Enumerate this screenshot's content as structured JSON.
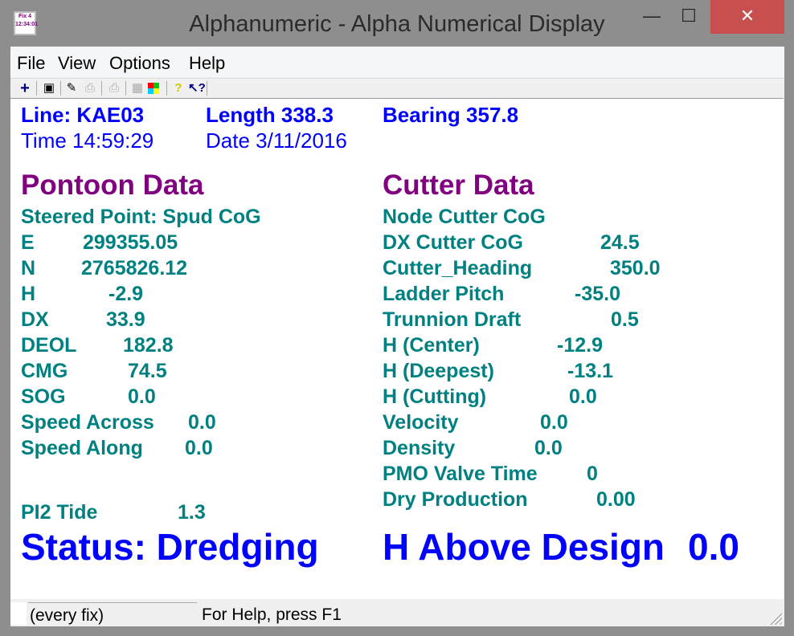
{
  "window": {
    "title": "Alphanumeric - Alpha Numerical Display",
    "icon_text": "Fix 4",
    "icon_subtext": "12:34:01",
    "minimize": "—",
    "maximize": "☐",
    "close": "✕"
  },
  "menu": [
    "File",
    "View",
    "Options",
    "Help"
  ],
  "toolbar": [
    {
      "icon": "plus-icon",
      "glyph": "+"
    },
    {
      "icon": "select-window-icon",
      "glyph": "▣"
    },
    {
      "icon": "wand-icon",
      "glyph": "✎"
    },
    {
      "icon": "print-icon",
      "glyph": "⎙"
    },
    {
      "icon": "print-preview-icon",
      "glyph": "⎙"
    },
    {
      "icon": "grid-icon",
      "glyph": "▦"
    },
    {
      "icon": "colors-icon",
      "glyph": "■"
    },
    {
      "icon": "help-icon",
      "glyph": "?"
    },
    {
      "icon": "context-help-icon",
      "glyph": "↖?"
    }
  ],
  "header": {
    "line": "Line: KAE03",
    "length": "Length  338.3",
    "bearing": "Bearing 357.8",
    "time": "Time 14:59:29",
    "date": "Date 3/11/2016"
  },
  "pontoon": {
    "title": "Pontoon Data",
    "steered": "Steered Point: Spud CoG",
    "rows": [
      {
        "label": "E",
        "value": "299355.05"
      },
      {
        "label": "N",
        "value": "2765826.12"
      },
      {
        "label": "H",
        "value": "-2.9"
      },
      {
        "label": "DX",
        "value": "33.9"
      },
      {
        "label": "DEOL",
        "value": "182.8"
      },
      {
        "label": "CMG",
        "value": "74.5"
      },
      {
        "label": "SOG",
        "value": "0.0"
      },
      {
        "label": "Speed Across",
        "value": "0.0"
      },
      {
        "label": "Speed Along",
        "value": "0.0"
      },
      {
        "label": "PI2 Tide",
        "value": "1.3"
      }
    ]
  },
  "cutter": {
    "title": "Cutter Data",
    "node": "Node Cutter CoG",
    "rows": [
      {
        "label": "DX Cutter CoG",
        "value": "24.5"
      },
      {
        "label": "Cutter_Heading",
        "value": "350.0"
      },
      {
        "label": "Ladder Pitch",
        "value": "-35.0"
      },
      {
        "label": "Trunnion Draft",
        "value": "0.5"
      },
      {
        "label": "H (Center)",
        "value": "-12.9"
      },
      {
        "label": "H (Deepest)",
        "value": "-13.1"
      },
      {
        "label": "H (Cutting)",
        "value": "0.0"
      },
      {
        "label": "Velocity",
        "value": "0.0"
      },
      {
        "label": "Density",
        "value": "0.0"
      },
      {
        "label": "PMO Valve Time",
        "value": "0"
      },
      {
        "label": "Dry Production",
        "value": "0.00"
      }
    ]
  },
  "status": {
    "label": "Status: Dredging",
    "h_above_label": "H Above Design",
    "h_above_value": "0.0"
  },
  "statusbar": {
    "mode": "(every fix)",
    "help": "For Help, press F1"
  },
  "colors": {
    "header": "#0000ff",
    "section": "#800080",
    "data": "#008080",
    "close": "#c7504f"
  }
}
